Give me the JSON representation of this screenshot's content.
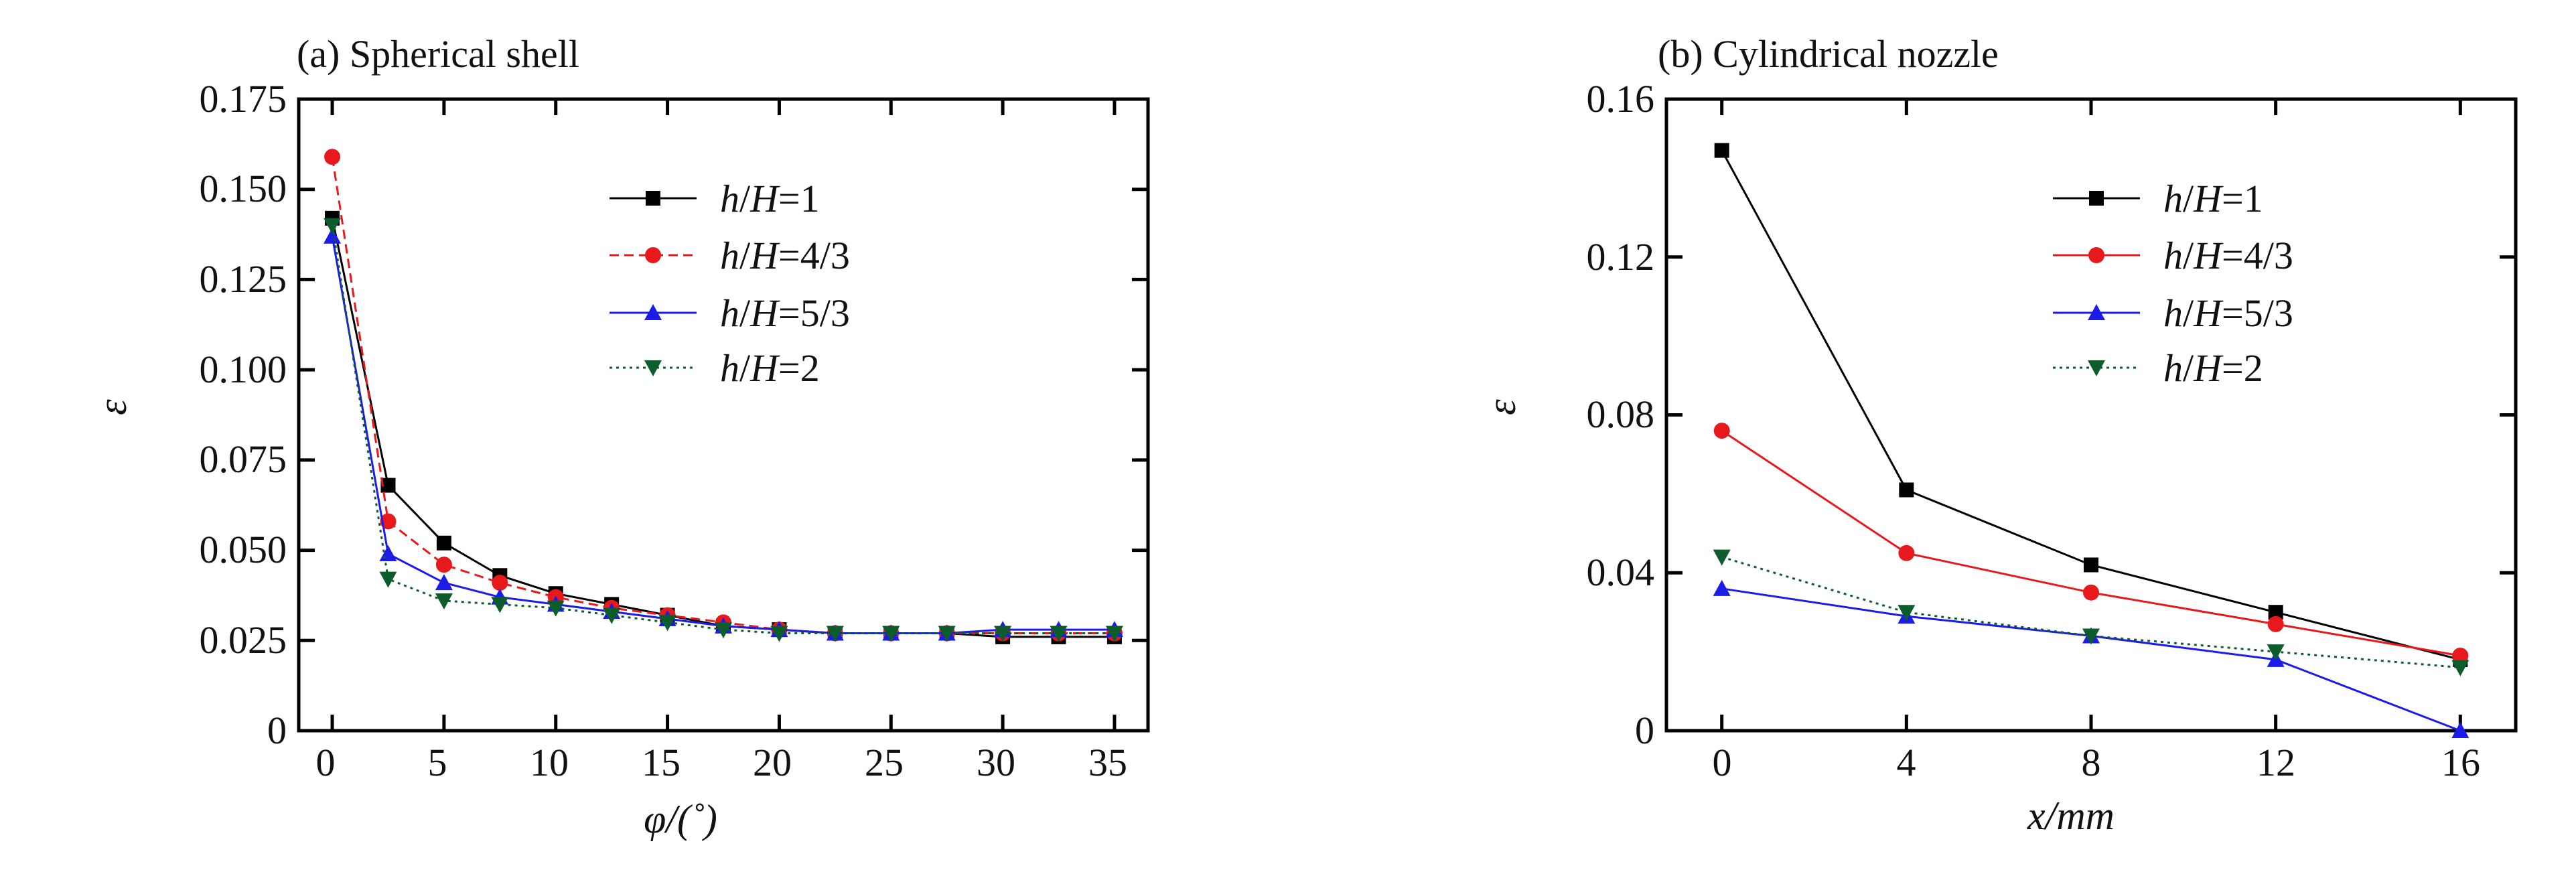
{
  "chart_data": [
    {
      "type": "line",
      "title": "(a) Spherical shell",
      "xlabel": "φ/(˚)",
      "ylabel": "ε",
      "xlim": [
        -1.5,
        36.5
      ],
      "ylim": [
        0,
        0.175
      ],
      "xticks": [
        0,
        5,
        10,
        15,
        20,
        25,
        30,
        35
      ],
      "xtick_labels": [
        "0",
        "5",
        "10",
        "15",
        "20",
        "25",
        "30",
        "35"
      ],
      "yticks": [
        0,
        0.025,
        0.05,
        0.075,
        0.1,
        0.125,
        0.15,
        0.175
      ],
      "ytick_labels": [
        "0",
        "0.025",
        "0.050",
        "0.075",
        "0.100",
        "0.125",
        "0.150",
        "0.175"
      ],
      "grid": false,
      "legend_position": "top-right",
      "x": [
        0,
        2.5,
        5,
        7.5,
        10,
        12.5,
        15,
        17.5,
        20,
        22.5,
        25,
        27.5,
        30,
        32.5,
        35
      ],
      "series": [
        {
          "name": "h/H=1",
          "name_parts": [
            "h",
            "/",
            "H",
            "=1"
          ],
          "color": "#000000",
          "marker": "square",
          "dash": "solid",
          "values": [
            0.142,
            0.068,
            0.052,
            0.043,
            0.038,
            0.035,
            0.032,
            0.029,
            0.028,
            0.027,
            0.027,
            0.027,
            0.026,
            0.026,
            0.026
          ]
        },
        {
          "name": "h/H=4/3",
          "name_parts": [
            "h",
            "/",
            "H",
            "=4/3"
          ],
          "color": "#e8191c",
          "marker": "circle",
          "dash": "dashed",
          "values": [
            0.159,
            0.058,
            0.046,
            0.041,
            0.037,
            0.034,
            0.032,
            0.03,
            0.028,
            0.027,
            0.027,
            0.027,
            0.027,
            0.027,
            0.027
          ]
        },
        {
          "name": "h/H=5/3",
          "name_parts": [
            "h",
            "/",
            "H",
            "=5/3"
          ],
          "color": "#1c1ce8",
          "marker": "triangle-up",
          "dash": "solid",
          "values": [
            0.137,
            0.049,
            0.041,
            0.037,
            0.035,
            0.033,
            0.031,
            0.029,
            0.028,
            0.027,
            0.027,
            0.027,
            0.028,
            0.028,
            0.028
          ]
        },
        {
          "name": "h/H=2",
          "name_parts": [
            "h",
            "/",
            "H",
            "=2"
          ],
          "color": "#0d5c2c",
          "marker": "triangle-down",
          "dash": "dotted",
          "values": [
            0.14,
            0.042,
            0.036,
            0.035,
            0.034,
            0.032,
            0.03,
            0.028,
            0.027,
            0.027,
            0.027,
            0.027,
            0.027,
            0.027,
            0.027
          ]
        }
      ]
    },
    {
      "type": "line",
      "title": "(b) Cylindrical nozzle",
      "xlabel": "x/mm",
      "ylabel": "ε",
      "xlim": [
        -1.2,
        17.2
      ],
      "ylim": [
        0,
        0.16
      ],
      "xticks": [
        0,
        4,
        8,
        12,
        16
      ],
      "xtick_labels": [
        "0",
        "4",
        "8",
        "12",
        "16"
      ],
      "yticks": [
        0,
        0.04,
        0.08,
        0.12,
        0.16
      ],
      "ytick_labels": [
        "0",
        "0.04",
        "0.08",
        "0.12",
        "0.16"
      ],
      "grid": false,
      "legend_position": "top-right",
      "x": [
        0,
        4,
        8,
        12,
        16
      ],
      "series": [
        {
          "name": "h/H=1",
          "name_parts": [
            "h",
            "/",
            "H",
            "=1"
          ],
          "color": "#000000",
          "marker": "square",
          "dash": "solid",
          "values": [
            0.147,
            0.061,
            0.042,
            0.03,
            0.018
          ]
        },
        {
          "name": "h/H=4/3",
          "name_parts": [
            "h",
            "/",
            "H",
            "=4/3"
          ],
          "color": "#e8191c",
          "marker": "circle",
          "dash": "solid",
          "values": [
            0.076,
            0.045,
            0.035,
            0.027,
            0.019
          ]
        },
        {
          "name": "h/H=5/3",
          "name_parts": [
            "h",
            "/",
            "H",
            "=5/3"
          ],
          "color": "#1c1ce8",
          "marker": "triangle-up",
          "dash": "solid",
          "values": [
            0.036,
            0.029,
            0.024,
            0.018,
            0
          ]
        },
        {
          "name": "h/H=2",
          "name_parts": [
            "h",
            "/",
            "H",
            "=2"
          ],
          "color": "#0d5c2c",
          "marker": "triangle-down",
          "dash": "dotted",
          "values": [
            0.044,
            0.03,
            0.024,
            0.02,
            0.016
          ]
        }
      ]
    }
  ]
}
